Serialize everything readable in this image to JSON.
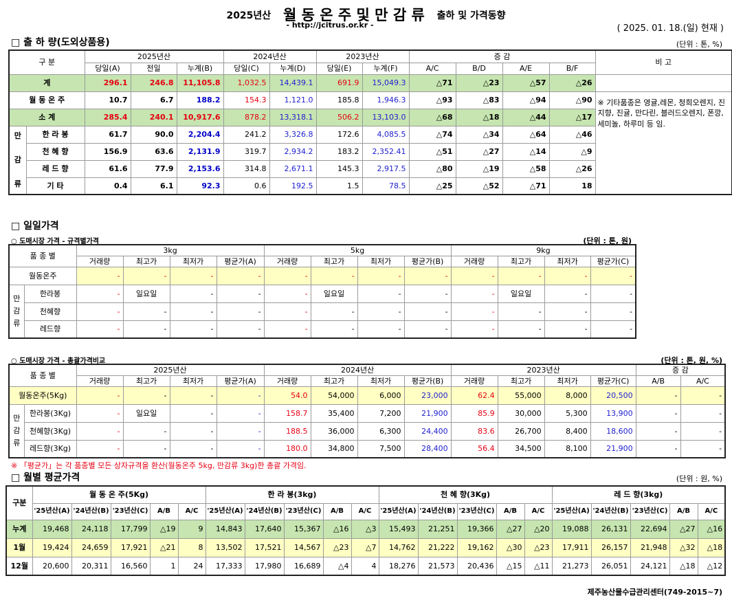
{
  "header": {
    "year_prefix": "2025년산",
    "main": "월 동 온 주 및 만 감 류",
    "suffix": "출하 및 가격동향",
    "url": "- http://jcitrus.or.kr -",
    "date": "( 2025. 01. 18.(일) 현재 )"
  },
  "sec1": {
    "title": "□ 출 하 량(도외상품용)",
    "unit": "(단위 : 톤, %)",
    "h": {
      "gubun": "구 분",
      "y25": "2025년산",
      "y24": "2024년산",
      "y23": "2023년산",
      "change": "증 감",
      "note": "비 고",
      "c": [
        "당일(A)",
        "전일",
        "누계(B)",
        "당일(C)",
        "누계(D)",
        "당일(E)",
        "누계(F)",
        "A/C",
        "B/D",
        "A/E",
        "B/F"
      ]
    },
    "group": "만감류",
    "rows": [
      {
        "label": "계",
        "v": [
          "296.1",
          "246.8",
          "11,105.8",
          "1,032.5",
          "14,439.1",
          "691.9",
          "15,049.3",
          "△71",
          "△23",
          "△57",
          "△26"
        ]
      },
      {
        "label": "월 동 온 주",
        "v": [
          "10.7",
          "6.7",
          "188.2",
          "154.3",
          "1,121.0",
          "185.8",
          "1,946.3",
          "△93",
          "△83",
          "△94",
          "△90"
        ]
      },
      {
        "label": "소 계",
        "v": [
          "285.4",
          "240.1",
          "10,917.6",
          "878.2",
          "13,318.1",
          "506.2",
          "13,103.0",
          "△68",
          "△18",
          "△44",
          "△17"
        ]
      },
      {
        "label": "한 라 봉",
        "v": [
          "61.7",
          "90.0",
          "2,204.4",
          "241.2",
          "3,326.8",
          "172.6",
          "4,085.5",
          "△74",
          "△34",
          "△64",
          "△46"
        ]
      },
      {
        "label": "천 혜 향",
        "v": [
          "156.9",
          "63.6",
          "2,131.9",
          "319.7",
          "2,934.2",
          "183.2",
          "2,352.41",
          "△51",
          "△27",
          "△14",
          "△9"
        ]
      },
      {
        "label": "레 드 향",
        "v": [
          "61.6",
          "77.9",
          "2,153.6",
          "314.8",
          "2,671.1",
          "145.3",
          "2,917.5",
          "△80",
          "△19",
          "△58",
          "△26"
        ]
      },
      {
        "label": "기 타",
        "v": [
          "0.4",
          "6.1",
          "92.3",
          "0.6",
          "192.5",
          "1.5",
          "78.5",
          "△25",
          "△52",
          "△71",
          "18"
        ]
      }
    ],
    "note": "※ 기타품종은 영귤,레몬, 청희오렌지, 진지향, 진귤, 만다린, 블러드오렌지, 폰깡,세미놀, 하루미 등 임."
  },
  "sec2": {
    "title": "□ 일일가격",
    "t1": {
      "caption": "○ 도매시장 가격 - 규격별가격",
      "unit": "(단위 : 톤, 원)",
      "h": {
        "kind": "품 종 별",
        "s3": "3kg",
        "s5": "5kg",
        "s9": "9kg",
        "c": [
          "거래량",
          "최고가",
          "최저가",
          "평균가(A)",
          "거래량",
          "최고가",
          "최저가",
          "평균가(B)",
          "거래량",
          "최고가",
          "최저가",
          "평균가(C)"
        ]
      },
      "group": "만감류",
      "rows": [
        {
          "label": "월동온주",
          "v": [
            "-",
            "-",
            "-",
            "-",
            "-",
            "-",
            "-",
            "-",
            "-",
            "-",
            "-",
            "-"
          ]
        },
        {
          "label": "한라봉",
          "v": [
            "-",
            "일요일",
            "-",
            "-",
            "-",
            "일요일",
            "-",
            "-",
            "-",
            "일요일",
            "-",
            "-"
          ]
        },
        {
          "label": "천혜향",
          "v": [
            "-",
            "-",
            "-",
            "-",
            "-",
            "-",
            "-",
            "-",
            "-",
            "-",
            "-",
            "-"
          ]
        },
        {
          "label": "레드향",
          "v": [
            "-",
            "-",
            "-",
            "-",
            "-",
            "-",
            "-",
            "-",
            "-",
            "-",
            "-",
            "-"
          ]
        }
      ]
    },
    "t2": {
      "caption": "○ 도매시장 가격 - 총괄가격비교",
      "unit": "(단위 : 톤, 원, %)",
      "h": {
        "kind": "품 종 별",
        "y25": "2025년산",
        "y24": "2024년산",
        "y23": "2023년산",
        "change": "증 감",
        "c": [
          "거래량",
          "최고가",
          "최저가",
          "평균가(A)",
          "거래량",
          "최고가",
          "최저가",
          "평균가(B)",
          "거래량",
          "최고가",
          "최저가",
          "평균가(C)",
          "A/B",
          "A/C"
        ]
      },
      "group": "만감류",
      "rows": [
        {
          "label": "월동온주(5Kg)",
          "v": [
            "-",
            "-",
            "-",
            "-",
            "54.0",
            "54,000",
            "6,000",
            "23,000",
            "62.4",
            "55,000",
            "8,000",
            "20,500",
            "-",
            "-"
          ]
        },
        {
          "label": "한라봉(3Kg)",
          "v": [
            "-",
            "일요일",
            "-",
            "-",
            "158.7",
            "35,400",
            "7,200",
            "21,900",
            "85.9",
            "30,000",
            "5,300",
            "13,900",
            "-",
            "-"
          ]
        },
        {
          "label": "천혜향(3Kg)",
          "v": [
            "-",
            "-",
            "-",
            "-",
            "188.5",
            "36,000",
            "6,300",
            "24,400",
            "83.6",
            "26,700",
            "8,400",
            "18,600",
            "-",
            "-"
          ]
        },
        {
          "label": "레드향(3Kg)",
          "v": [
            "-",
            "-",
            "-",
            "-",
            "180.0",
            "34,800",
            "7,500",
            "28,400",
            "56.4",
            "34,500",
            "8,100",
            "21,900",
            "-",
            "-"
          ]
        }
      ],
      "note": "※ 「평균가」는 각 품종별 모든 상자규격을 환산(월동온주 5kg, 만감류 3kg)한 총괄 가격임."
    }
  },
  "sec3": {
    "title": "□ 월별 평균가격",
    "unit": "(단위 : 원, %)",
    "h": {
      "gubun": "구분",
      "groups": [
        "월 동 온 주(5Kg)",
        "한 라 봉(3kg)",
        "천 혜 향(3Kg)",
        "레 드 향(3kg)"
      ],
      "c": [
        "'25년산(A)",
        "'24년산(B)",
        "'23년산(C)",
        "A/B",
        "A/C"
      ]
    },
    "rows": [
      {
        "label": "누계",
        "v": [
          "19,468",
          "24,118",
          "17,799",
          "△19",
          "9",
          "14,843",
          "17,640",
          "15,367",
          "△16",
          "△3",
          "15,493",
          "21,251",
          "19,366",
          "△27",
          "△20",
          "19,088",
          "26,131",
          "22,694",
          "△27",
          "△16"
        ]
      },
      {
        "label": "1월",
        "v": [
          "19,424",
          "24,659",
          "17,921",
          "△21",
          "8",
          "13,502",
          "17,521",
          "14,567",
          "△23",
          "△7",
          "14,762",
          "21,222",
          "19,162",
          "△30",
          "△23",
          "17,911",
          "26,157",
          "21,948",
          "△32",
          "△18"
        ]
      },
      {
        "label": "12월",
        "v": [
          "20,600",
          "20,311",
          "16,560",
          "1",
          "24",
          "17,333",
          "17,980",
          "16,689",
          "△4",
          "4",
          "18,276",
          "21,573",
          "20,436",
          "△15",
          "△11",
          "21,273",
          "26,051",
          "24,121",
          "△18",
          "△12"
        ]
      }
    ]
  },
  "footer": "제주농산물수급관리센터(749-2015~7)"
}
